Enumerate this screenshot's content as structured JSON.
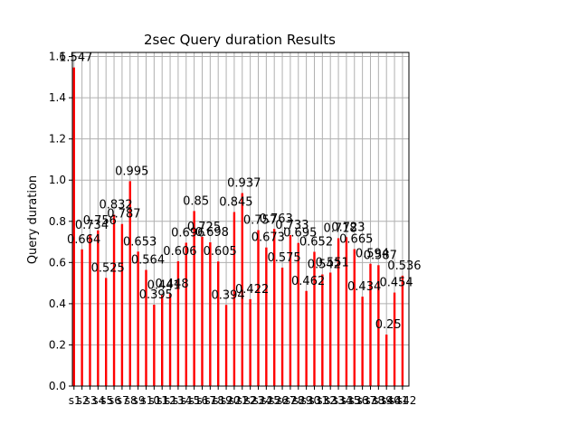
{
  "chart_data": {
    "type": "bar",
    "title": "2sec Query duration Results",
    "xlabel": "",
    "ylabel": "Query duration",
    "ylim": [
      0,
      1.62
    ],
    "yticks": [
      0.0,
      0.2,
      0.4,
      0.6,
      0.8,
      1.0,
      1.2,
      1.4,
      1.6
    ],
    "ytick_labels": [
      "0.0",
      "0.2",
      "0.4",
      "0.6",
      "0.8",
      "1.0",
      "1.2",
      "1.4",
      "1.6"
    ],
    "grid": true,
    "bar_color": "#ff0000",
    "categories": [
      "s1",
      "s2",
      "s3",
      "s4",
      "s5",
      "s6",
      "s7",
      "s8",
      "s9",
      "s10",
      "s11",
      "s12",
      "s13",
      "s14",
      "s15",
      "s16",
      "s17",
      "s18",
      "s19",
      "s20",
      "s21",
      "s22",
      "s23",
      "s24",
      "s25",
      "s26",
      "s27",
      "s28",
      "s29",
      "s30",
      "s31",
      "s32",
      "s33",
      "s34",
      "s35",
      "s36",
      "s37",
      "s38",
      "s39",
      "s40",
      "s41",
      "s42"
    ],
    "values": [
      1.547,
      0.664,
      0.734,
      0.756,
      0.525,
      0.832,
      0.787,
      0.995,
      0.653,
      0.564,
      0.395,
      0.441,
      0.448,
      0.606,
      0.696,
      0.85,
      0.725,
      0.698,
      0.605,
      0.394,
      0.845,
      0.937,
      0.422,
      0.757,
      0.673,
      0.763,
      0.575,
      0.733,
      0.695,
      0.462,
      0.652,
      0.542,
      0.551,
      0.718,
      0.723,
      0.665,
      0.434,
      0.594,
      0.587,
      0.25,
      0.454,
      0.536
    ],
    "data_labels": [
      "1.547",
      "0.664",
      "0.734",
      "0.756",
      "0.525",
      "0.832",
      "0.787",
      "0.995",
      "0.653",
      "0.564",
      "0.395",
      "0.441",
      "0.448",
      "0.606",
      "0.696",
      "0.85",
      "0.725",
      "0.698",
      "0.605",
      "0.394",
      "0.845",
      "0.937",
      "0.422",
      "0.757",
      "0.673",
      "0.763",
      "0.575",
      "0.733",
      "0.695",
      "0.462",
      "0.652",
      "0.542",
      "0.551",
      "0.718",
      "0.723",
      "0.665",
      "0.434",
      "0.594",
      "0.587",
      "0.25",
      "0.454",
      "0.536"
    ]
  }
}
